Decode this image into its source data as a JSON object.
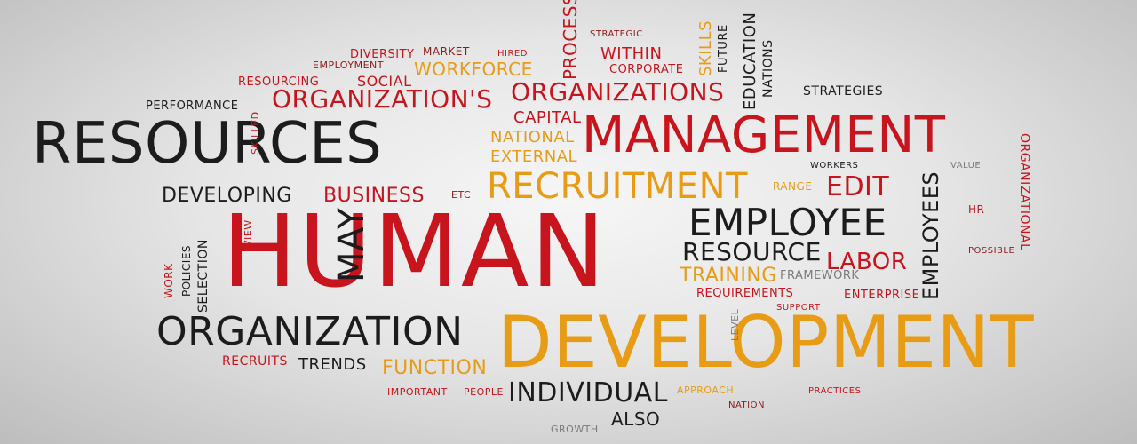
{
  "palette": {
    "red": "#c8141c",
    "darkred": "#8e1a1a",
    "orange": "#e89c16",
    "black": "#1c1c1c",
    "gray": "#7a7a7a",
    "background": "#e8e8e8"
  },
  "words": {
    "human": "HUMAN",
    "development": "DEVELOPMENT",
    "resources": "RESOURCES",
    "management": "MANAGEMENT",
    "organization": "ORGANIZATION",
    "organization_s": "ORGANIZATION'S",
    "organizations": "ORGANIZATIONS",
    "employee": "EMPLOYEE",
    "recruitment": "RECRUITMENT",
    "resource": "RESOURCE",
    "individual": "INDIVIDUAL",
    "workforce": "WORKFORCE",
    "developing": "DEVELOPING",
    "business": "BUSINESS",
    "training": "TRAINING",
    "labor": "LABOR",
    "edit": "EDIT",
    "function": "FUNCTION",
    "trends": "TRENDS",
    "recruits": "RECRUITS",
    "may": "MAY",
    "employees": "EMPLOYEES",
    "also": "ALSO",
    "within": "WITHIN",
    "corporate": "CORPORATE",
    "capital": "CAPITAL",
    "national": "NATIONAL",
    "external": "EXTERNAL",
    "social": "SOCIAL",
    "diversity": "DIVERSITY",
    "market": "MARKET",
    "performance": "PERFORMANCE",
    "employment": "EMPLOYMENT",
    "resourcing": "RESOURCING",
    "process": "PROCESS",
    "skills": "SKILLS",
    "future": "FUTURE",
    "education": "EDUCATION",
    "nations": "NATIONS",
    "strategies": "STRATEGIES",
    "strategic": "STRATEGIC",
    "framework": "FRAMEWORK",
    "requirements": "REQUIREMENTS",
    "enterprise": "ENTERPRISE",
    "range": "RANGE",
    "selection": "SELECTION",
    "policies": "POLICIES",
    "work": "WORK",
    "level": "LEVEL",
    "approach": "APPROACH",
    "people": "PEOPLE",
    "important": "IMPORTANT",
    "growth": "GROWTH",
    "etc": "ETC",
    "organizational": "ORGANIZATIONAL",
    "possible": "POSSIBLE",
    "workers": "WORKERS",
    "view": "VIEW",
    "skilled": "SKILLED",
    "hired": "HIRED",
    "nation": "NATION",
    "practices": "PRACTICES",
    "support": "SUPPORT",
    "value": "VALUE",
    "hr": "HR"
  }
}
